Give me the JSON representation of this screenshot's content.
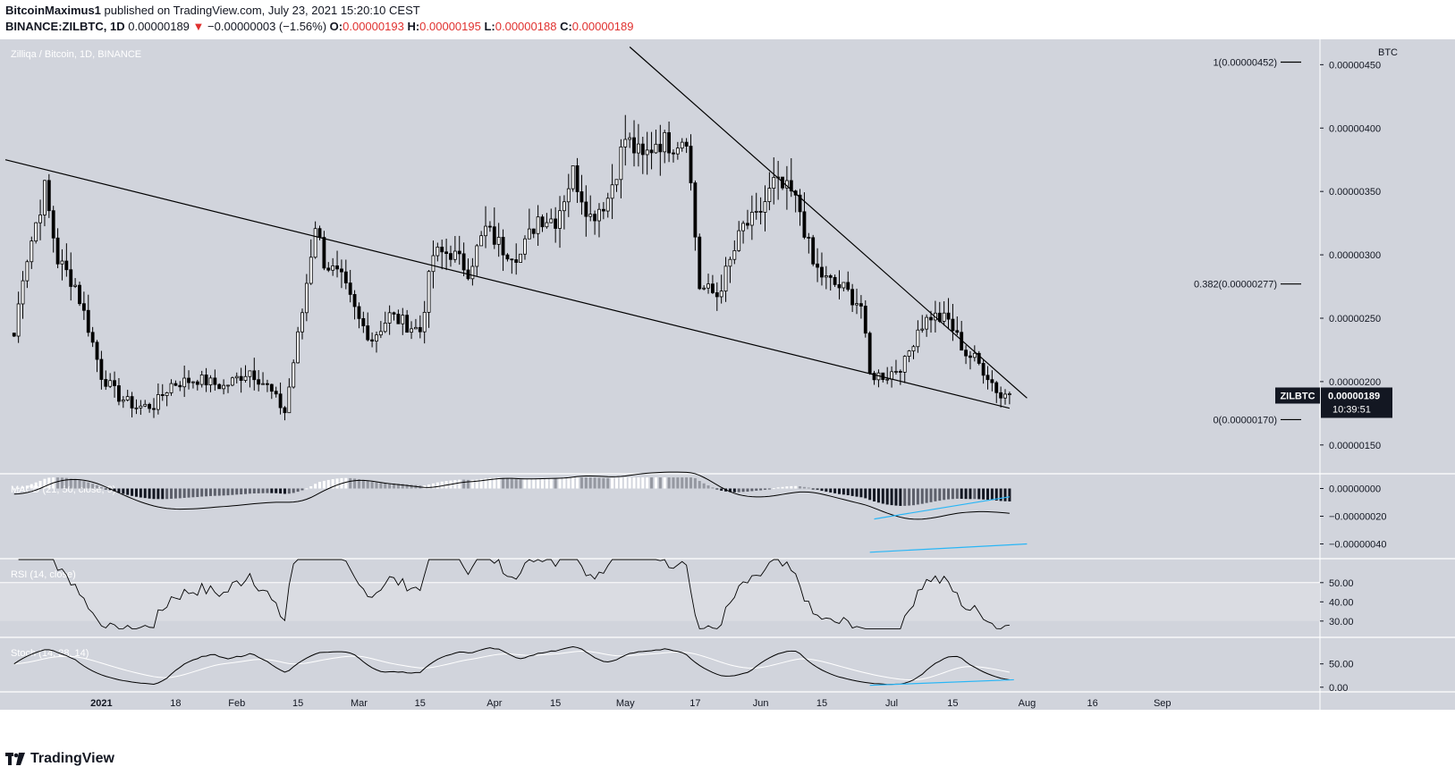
{
  "header": {
    "author": "BitcoinMaximus1",
    "published_text": "published on TradingView.com, July 23, 2021 15:20:10 CEST",
    "symbol": "BINANCE:ZILBTC, 1D",
    "last": "0.00000189",
    "arrow": "▼",
    "change": "−0.00000003 (−1.56%)",
    "o_label": "O:",
    "o_value": "0.00000193",
    "h_label": "H:",
    "h_value": "0.00000195",
    "l_label": "L:",
    "l_value": "0.00000188",
    "c_label": "C:",
    "c_value": "0.00000189"
  },
  "footer": {
    "brand": "TradingView",
    "logo_icon": "tradingview-logo-icon"
  },
  "colors": {
    "panel_bg": "#d1d4dc",
    "candle_up": "#ffffff",
    "candle_down": "#000000",
    "accent_blue": "#29b6f6",
    "negative": "#e0312f"
  },
  "chart_data": {
    "type": "candlestick",
    "title": "Zilliqa / Bitcoin, 1D, BINANCE",
    "price_axis_label": "BTC",
    "y_ticks": [
      "0.00000450",
      "0.00000400",
      "0.00000350",
      "0.00000300",
      "0.00000250",
      "0.00000200",
      "0.00000150"
    ],
    "y_tick_values": [
      450,
      400,
      350,
      300,
      250,
      200,
      150
    ],
    "y_unit_note": "values in satoshi-scale ×1e-8 BTC",
    "ylim": [
      128,
      470
    ],
    "x_ticks": [
      "2021",
      "18",
      "Feb",
      "15",
      "Mar",
      "15",
      "Apr",
      "15",
      "May",
      "17",
      "Jun",
      "15",
      "Jul",
      "15",
      "Aug",
      "16",
      "Sep"
    ],
    "x_tick_days": [
      0,
      17,
      31,
      45,
      59,
      73,
      90,
      104,
      120,
      136,
      151,
      165,
      181,
      195,
      212,
      227,
      243
    ],
    "x_range_days": [
      -22,
      275
    ],
    "last_price_label": {
      "symbol": "ZILBTC",
      "value": "0.00000189",
      "countdown": "10:39:51"
    },
    "fib_levels": [
      {
        "label": "1(0.00000452)",
        "value": 452
      },
      {
        "label": "0.382(0.00000277)",
        "value": 277
      },
      {
        "label": "0(0.00000170)",
        "value": 170
      }
    ],
    "trendlines": [
      {
        "name": "upper",
        "from": {
          "day": -22,
          "value": 375
        },
        "to": {
          "day": 208,
          "value": 179
        }
      },
      {
        "name": "lower",
        "from": {
          "day": 121,
          "value": 464
        },
        "to": {
          "day": 212,
          "value": 187
        }
      }
    ],
    "price_keypoints": [
      [
        -20,
        236
      ],
      [
        -18,
        285
      ],
      [
        -13,
        352
      ],
      [
        -10,
        296
      ],
      [
        -6,
        276
      ],
      [
        -3,
        243
      ],
      [
        0,
        205
      ],
      [
        4,
        188
      ],
      [
        8,
        180
      ],
      [
        12,
        181
      ],
      [
        16,
        198
      ],
      [
        22,
        202
      ],
      [
        28,
        196
      ],
      [
        34,
        209
      ],
      [
        38,
        196
      ],
      [
        42,
        176
      ],
      [
        46,
        255
      ],
      [
        49,
        325
      ],
      [
        51,
        295
      ],
      [
        55,
        280
      ],
      [
        59,
        248
      ],
      [
        62,
        234
      ],
      [
        66,
        252
      ],
      [
        70,
        245
      ],
      [
        73,
        240
      ],
      [
        76,
        300
      ],
      [
        80,
        302
      ],
      [
        84,
        288
      ],
      [
        88,
        320
      ],
      [
        92,
        305
      ],
      [
        96,
        300
      ],
      [
        100,
        330
      ],
      [
        104,
        328
      ],
      [
        108,
        365
      ],
      [
        112,
        330
      ],
      [
        116,
        345
      ],
      [
        120,
        392
      ],
      [
        124,
        375
      ],
      [
        127,
        390
      ],
      [
        131,
        388
      ],
      [
        134,
        395
      ],
      [
        137,
        275
      ],
      [
        141,
        268
      ],
      [
        144,
        294
      ],
      [
        147,
        322
      ],
      [
        150,
        328
      ],
      [
        154,
        356
      ],
      [
        158,
        348
      ],
      [
        160,
        335
      ],
      [
        163,
        292
      ],
      [
        166,
        280
      ],
      [
        170,
        273
      ],
      [
        174,
        260
      ],
      [
        176,
        205
      ],
      [
        180,
        205
      ],
      [
        184,
        215
      ],
      [
        187,
        242
      ],
      [
        190,
        252
      ],
      [
        194,
        248
      ],
      [
        198,
        222
      ],
      [
        200,
        218
      ],
      [
        203,
        205
      ],
      [
        206,
        188
      ],
      [
        208,
        192
      ]
    ],
    "macd": {
      "label": "MACD (21, 50, close, 9)",
      "y_ticks": [
        "0.00000000",
        "−0.00000020",
        "−0.00000040"
      ],
      "y_tick_values": [
        0,
        -20,
        -40
      ],
      "ylim": [
        -50,
        10
      ]
    },
    "rsi": {
      "label": "RSI (14, close)",
      "y_ticks": [
        "50.00",
        "40.00",
        "30.00"
      ],
      "y_tick_values": [
        50,
        40,
        30
      ],
      "ylim": [
        22,
        62
      ],
      "band": [
        30,
        50
      ]
    },
    "stoch": {
      "label": "Stoch (14, 28, 14)",
      "y_ticks": [
        "50.00",
        "0.00"
      ],
      "y_tick_values": [
        50,
        0
      ],
      "ylim": [
        -10,
        105
      ]
    }
  }
}
